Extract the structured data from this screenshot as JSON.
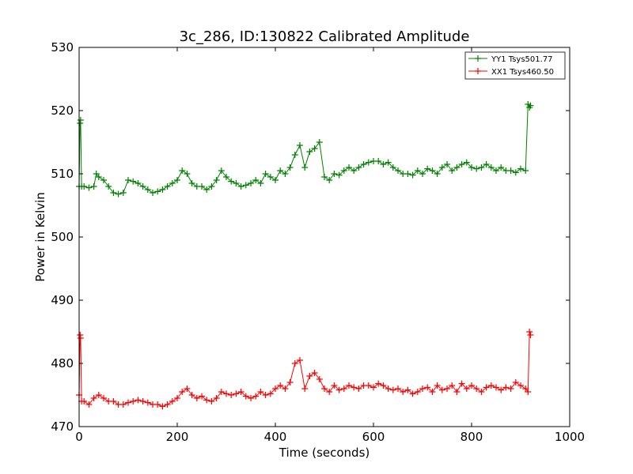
{
  "chart_data": {
    "type": "line",
    "title": "3c_286, ID:130822 Calibrated Amplitude",
    "xlabel": "Time (seconds)",
    "ylabel": "Power in Kelvin",
    "xlim": [
      0,
      1000
    ],
    "ylim": [
      470,
      530
    ],
    "x_ticks": [
      "0",
      "200",
      "400",
      "600",
      "800",
      "1000"
    ],
    "y_ticks": [
      "470",
      "480",
      "490",
      "500",
      "510",
      "520",
      "530"
    ],
    "grid": false,
    "legend_position": "top-right",
    "marker": "plus",
    "series": [
      {
        "name": "YY1 Tsys501.77",
        "color": "#008000",
        "x": [
          0,
          2,
          3,
          5,
          10,
          20,
          30,
          35,
          40,
          50,
          60,
          70,
          80,
          90,
          100,
          110,
          120,
          130,
          140,
          150,
          160,
          170,
          180,
          190,
          200,
          210,
          220,
          230,
          240,
          250,
          260,
          270,
          280,
          290,
          300,
          310,
          320,
          330,
          340,
          350,
          360,
          370,
          380,
          390,
          400,
          410,
          420,
          430,
          440,
          450,
          460,
          470,
          480,
          490,
          500,
          510,
          520,
          530,
          540,
          550,
          560,
          570,
          580,
          590,
          600,
          610,
          620,
          630,
          640,
          650,
          660,
          670,
          680,
          690,
          700,
          710,
          720,
          730,
          740,
          750,
          760,
          770,
          780,
          790,
          800,
          810,
          820,
          830,
          840,
          850,
          860,
          870,
          880,
          890,
          900,
          910,
          915,
          918,
          920
        ],
        "values": [
          508,
          518,
          518.5,
          508,
          508,
          507.8,
          508,
          510,
          509.5,
          509,
          508,
          507,
          506.8,
          507,
          509,
          508.8,
          508.5,
          508,
          507.5,
          507,
          507.2,
          507.5,
          508,
          508.5,
          509,
          510.5,
          510,
          508.5,
          508,
          508,
          507.5,
          508,
          509,
          510.5,
          509.5,
          508.8,
          508.5,
          508,
          508.2,
          508.5,
          509,
          508.5,
          510,
          509.5,
          509,
          510.5,
          510,
          511,
          513,
          514.5,
          511,
          513.5,
          514,
          515,
          509.5,
          509,
          510,
          509.8,
          510.5,
          511,
          510.5,
          511,
          511.5,
          511.8,
          512,
          512,
          511.5,
          511.8,
          511,
          510.5,
          510,
          510,
          509.8,
          510.5,
          510,
          510.8,
          510.5,
          510,
          511,
          511.5,
          510.5,
          511,
          511.5,
          511.8,
          511,
          510.8,
          511,
          511.5,
          511,
          510.5,
          511,
          510.5,
          510.5,
          510.2,
          510.8,
          510.5,
          521,
          520.5,
          520.8
        ]
      },
      {
        "name": "XX1 Tsys460.50",
        "color": "#ff0000",
        "x": [
          0,
          2,
          3,
          5,
          10,
          20,
          30,
          40,
          50,
          60,
          70,
          80,
          90,
          100,
          110,
          120,
          130,
          140,
          150,
          160,
          170,
          180,
          190,
          200,
          210,
          220,
          230,
          240,
          250,
          260,
          270,
          280,
          290,
          300,
          310,
          320,
          330,
          340,
          350,
          360,
          370,
          380,
          390,
          400,
          410,
          420,
          430,
          440,
          450,
          460,
          470,
          480,
          490,
          500,
          510,
          520,
          530,
          540,
          550,
          560,
          570,
          580,
          590,
          600,
          610,
          620,
          630,
          640,
          650,
          660,
          670,
          680,
          690,
          700,
          710,
          720,
          730,
          740,
          750,
          760,
          770,
          780,
          790,
          800,
          810,
          820,
          830,
          840,
          850,
          860,
          870,
          880,
          890,
          900,
          910,
          915,
          918,
          920
        ],
        "values": [
          475,
          484.5,
          484,
          474,
          474,
          473.5,
          474.5,
          475,
          474.5,
          474,
          474,
          473.5,
          473.5,
          473.8,
          474,
          474.2,
          474,
          473.8,
          473.5,
          473.5,
          473.2,
          473.5,
          474,
          474.5,
          475.5,
          476,
          475,
          474.5,
          474.8,
          474.2,
          474,
          474.5,
          475.5,
          475.2,
          475,
          475.2,
          475.5,
          474.8,
          474.5,
          474.8,
          475.5,
          475,
          475.2,
          476,
          476.5,
          476,
          477,
          480,
          480.5,
          476,
          478,
          478.5,
          477.5,
          476,
          475.5,
          476.5,
          475.8,
          476,
          476.5,
          476.2,
          476,
          476.5,
          476.5,
          476.2,
          476.8,
          476.5,
          476,
          475.8,
          476,
          475.5,
          475.8,
          475.2,
          475.5,
          476,
          476.2,
          475.5,
          476.5,
          475.8,
          476,
          476.5,
          475.5,
          476.8,
          476,
          476.5,
          476,
          475.5,
          476.2,
          476.5,
          476.2,
          475.8,
          476.2,
          476,
          477,
          476.5,
          476,
          475.5,
          485,
          484.5
        ]
      }
    ]
  }
}
